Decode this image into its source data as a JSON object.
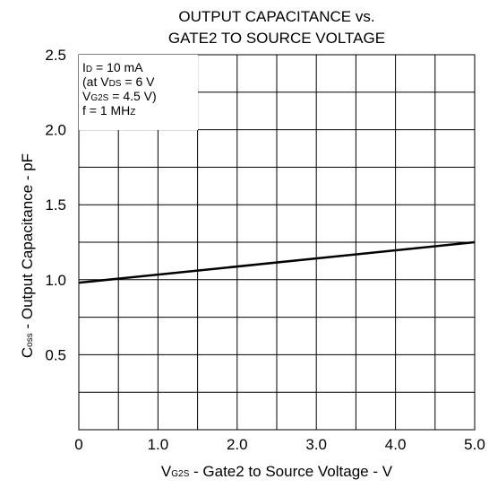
{
  "chart_data": {
    "type": "line",
    "title_lines": [
      "OUTPUT CAPACITANCE vs.",
      "GATE2 TO SOURCE VOLTAGE"
    ],
    "xlabel": {
      "prefix": "V",
      "sub": "G2S",
      "rest": " - Gate2 to Source Voltage - V"
    },
    "ylabel": {
      "prefix": "C",
      "sub": "oss",
      "rest": " - Output Capacitance - pF"
    },
    "xlim": [
      0,
      5.0
    ],
    "ylim": [
      0,
      2.5
    ],
    "x_ticks": [
      "0",
      "1.0",
      "2.0",
      "3.0",
      "4.0",
      "5.0"
    ],
    "y_ticks": [
      "0.5",
      "1.0",
      "1.5",
      "2.0",
      "2.5"
    ],
    "x_tick_values": [
      0,
      1,
      2,
      3,
      4,
      5
    ],
    "y_tick_values": [
      0.5,
      1.0,
      1.5,
      2.0,
      2.5
    ],
    "grid": true,
    "conditions": [
      {
        "prefix": "I",
        "sub": "D",
        "rest": " = 10 mA"
      },
      {
        "prefix": "(at V",
        "sub": "DS",
        "rest": " = 6 V"
      },
      {
        "prefix": "V",
        "sub": "G2S",
        "rest": " = 4.5 V)"
      },
      {
        "prefix": "f = 1 MH",
        "sub": "Z",
        "rest": ""
      }
    ],
    "series": [
      {
        "x": [
          0,
          5.0
        ],
        "y": [
          0.98,
          1.25
        ]
      }
    ]
  }
}
